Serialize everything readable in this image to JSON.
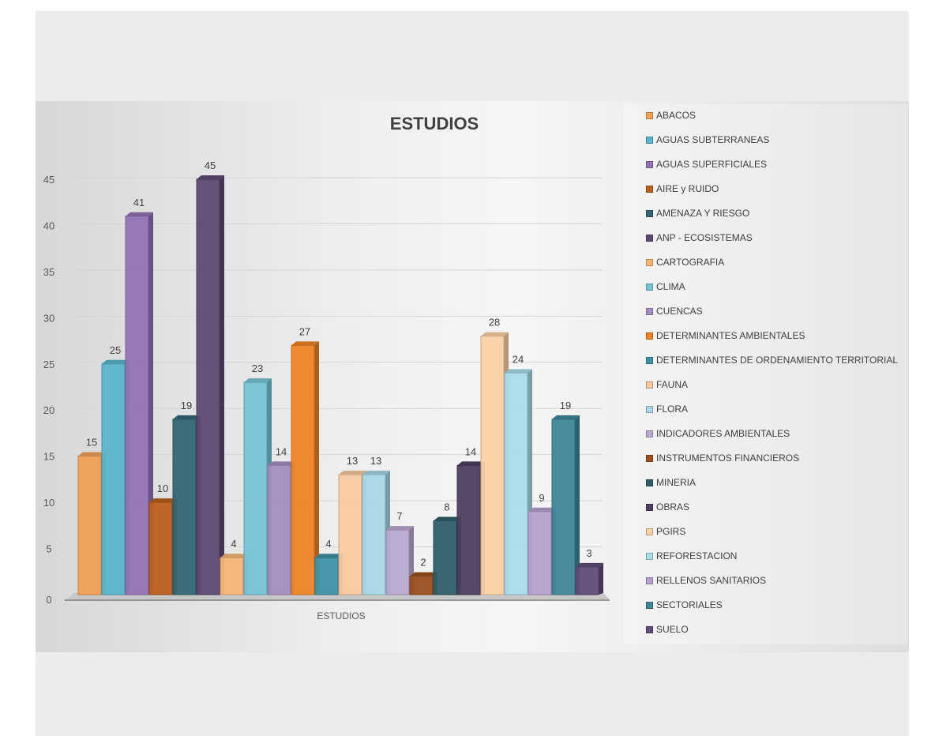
{
  "chart_data": {
    "type": "bar",
    "title": "ESTUDIOS",
    "xlabel": "ESTUDIOS",
    "ylabel": "",
    "categories": [
      "ESTUDIOS"
    ],
    "ylim": [
      0,
      45
    ],
    "yticks": [
      0,
      5,
      10,
      15,
      20,
      25,
      30,
      35,
      40,
      45
    ],
    "grid": true,
    "legend_position": "right",
    "series": [
      {
        "name": "ABACOS",
        "values": [
          15
        ],
        "color": "#f0a157"
      },
      {
        "name": "AGUAS SUBTERRANEAS",
        "values": [
          25
        ],
        "color": "#5ab4cc"
      },
      {
        "name": "AGUAS SUPERFICIALES",
        "values": [
          41
        ],
        "color": "#9273b4"
      },
      {
        "name": "AIRE y RUIDO",
        "values": [
          10
        ],
        "color": "#b9601f"
      },
      {
        "name": "AMENAZA Y RIESGO",
        "values": [
          19
        ],
        "color": "#336773"
      },
      {
        "name": "ANP - ECOSISTEMAS",
        "values": [
          45
        ],
        "color": "#5d4a73"
      },
      {
        "name": "CARTOGRAFIA",
        "values": [
          4
        ],
        "color": "#f7b577"
      },
      {
        "name": "CLIMA",
        "values": [
          23
        ],
        "color": "#76c3d6"
      },
      {
        "name": "CUENCAS",
        "values": [
          14
        ],
        "color": "#a58ec0"
      },
      {
        "name": "DETERMINANTES AMBIENTALES",
        "values": [
          27
        ],
        "color": "#ef8427"
      },
      {
        "name": "DETERMINANTES DE ORDENAMIENTO TERRITORIAL",
        "values": [
          4
        ],
        "color": "#3f91a5"
      },
      {
        "name": "FAUNA",
        "values": [
          13
        ],
        "color": "#f8c9a0"
      },
      {
        "name": "FLORA",
        "values": [
          13
        ],
        "color": "#a6d8e5"
      },
      {
        "name": "INDICADORES AMBIENTALES",
        "values": [
          7
        ],
        "color": "#bba9d1"
      },
      {
        "name": "INSTRUMENTOS FINANCIEROS",
        "values": [
          2
        ],
        "color": "#9a4f1d"
      },
      {
        "name": "MINERIA",
        "values": [
          8
        ],
        "color": "#2e5e68"
      },
      {
        "name": "OBRAS",
        "values": [
          14
        ],
        "color": "#4d3e5f"
      },
      {
        "name": "PGIRS",
        "values": [
          28
        ],
        "color": "#fbd1a5"
      },
      {
        "name": "REFORESTACION",
        "values": [
          24
        ],
        "color": "#a8dcea"
      },
      {
        "name": "RELLENOS SANITARIOS",
        "values": [
          9
        ],
        "color": "#b6a0cf"
      },
      {
        "name": "SECTORIALES",
        "values": [
          19
        ],
        "color": "#3e8698"
      },
      {
        "name": "SUELO",
        "values": [
          3
        ],
        "color": "#5f4b78"
      }
    ]
  }
}
